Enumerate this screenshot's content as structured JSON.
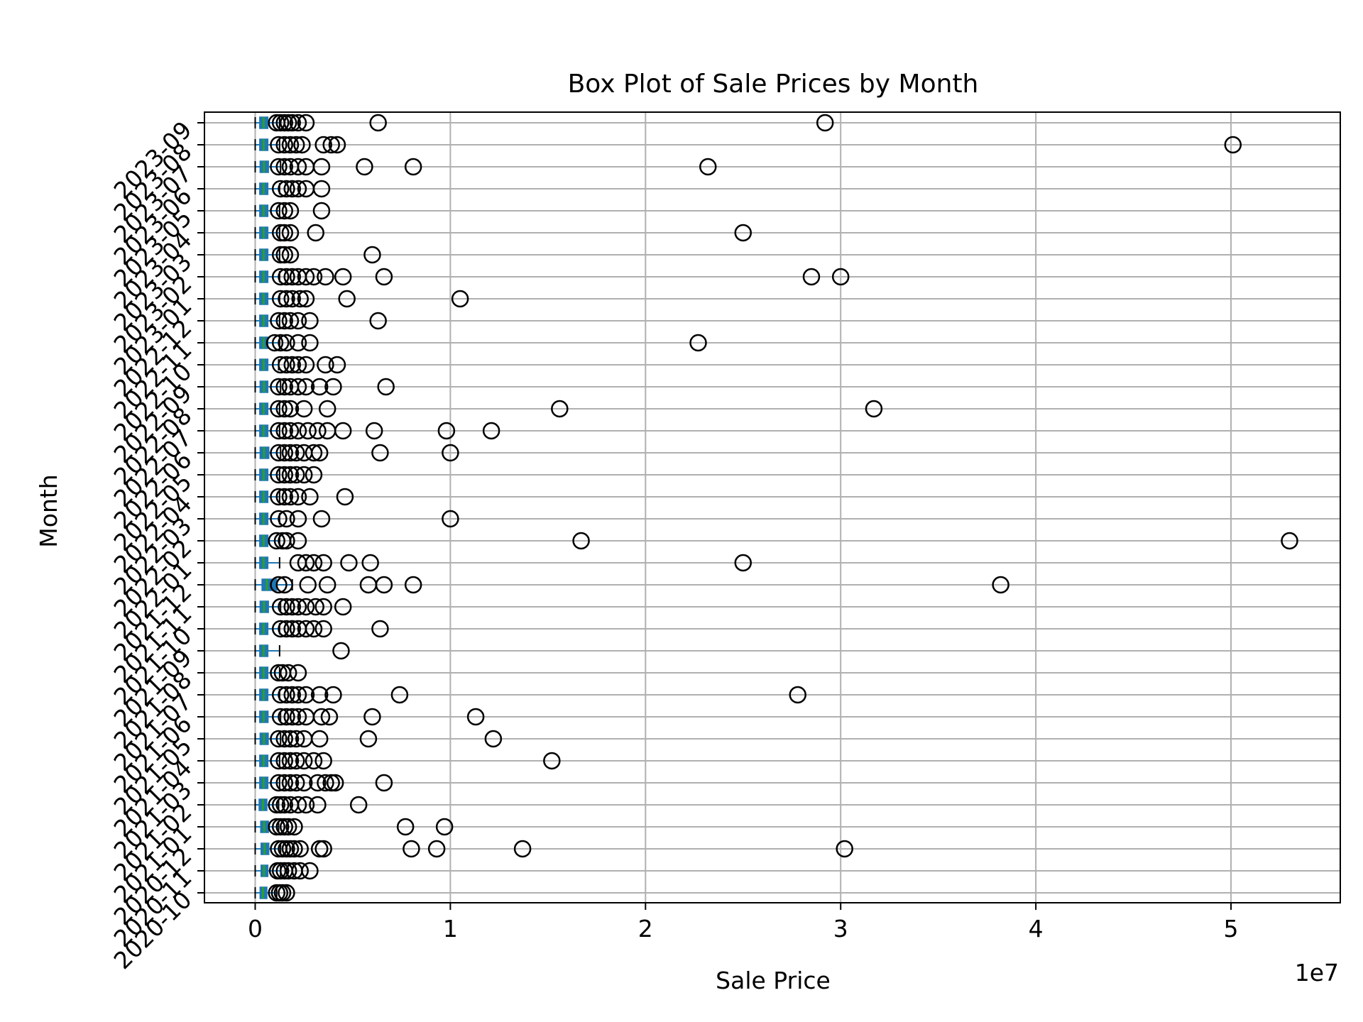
{
  "chart_data": {
    "type": "box",
    "orientation": "horizontal",
    "title": "Box Plot of Sale Prices by Month",
    "xlabel": "Sale Price",
    "ylabel": "Month",
    "offset_label": "1e7",
    "xlim": [
      -2600000,
      55600000
    ],
    "xticks": [
      0,
      10000000,
      20000000,
      30000000,
      40000000,
      50000000
    ],
    "xtick_labels": [
      "0",
      "1",
      "2",
      "3",
      "4",
      "5"
    ],
    "grid": true,
    "colors": {
      "box": "#1f77b4",
      "median": "#2ca02c",
      "flier": "#000000",
      "grid": "#b0b0b0"
    },
    "categories": [
      "2020-10",
      "2020-11",
      "2020-12",
      "2021-01",
      "2021-02",
      "2021-03",
      "2021-04",
      "2021-05",
      "2021-06",
      "2021-07",
      "2021-08",
      "2021-09",
      "2021-10",
      "2021-11",
      "2021-12",
      "2022-01",
      "2022-02",
      "2022-03",
      "2022-04",
      "2022-05",
      "2022-06",
      "2022-07",
      "2022-08",
      "2022-09",
      "2022-10",
      "2022-11",
      "2022-12",
      "2023-01",
      "2023-02",
      "2023-03",
      "2023-04",
      "2023-05",
      "2023-06",
      "2023-07",
      "2023-08",
      "2023-09"
    ],
    "boxes": [
      {
        "whislo": 0,
        "q1": 250000,
        "med": 400000,
        "q3": 600000,
        "whishi": 1100000
      },
      {
        "whislo": 0,
        "q1": 300000,
        "med": 450000,
        "q3": 650000,
        "whishi": 1300000
      },
      {
        "whislo": 0,
        "q1": 300000,
        "med": 480000,
        "q3": 700000,
        "whishi": 1300000
      },
      {
        "whislo": 0,
        "q1": 280000,
        "med": 460000,
        "q3": 680000,
        "whishi": 1200000
      },
      {
        "whislo": 0,
        "q1": 200000,
        "med": 400000,
        "q3": 600000,
        "whishi": 1200000
      },
      {
        "whislo": 0,
        "q1": 230000,
        "med": 430000,
        "q3": 650000,
        "whishi": 1250000
      },
      {
        "whislo": 0,
        "q1": 230000,
        "med": 430000,
        "q3": 650000,
        "whishi": 1250000
      },
      {
        "whislo": 0,
        "q1": 250000,
        "med": 450000,
        "q3": 670000,
        "whishi": 1300000
      },
      {
        "whislo": 0,
        "q1": 230000,
        "med": 430000,
        "q3": 660000,
        "whishi": 1300000
      },
      {
        "whislo": 0,
        "q1": 230000,
        "med": 430000,
        "q3": 650000,
        "whishi": 1250000
      },
      {
        "whislo": 0,
        "q1": 230000,
        "med": 430000,
        "q3": 650000,
        "whishi": 1250000
      },
      {
        "whislo": 0,
        "q1": 230000,
        "med": 430000,
        "q3": 650000,
        "whishi": 1250000
      },
      {
        "whislo": 0,
        "q1": 230000,
        "med": 430000,
        "q3": 650000,
        "whishi": 1250000
      },
      {
        "whislo": 0,
        "q1": 250000,
        "med": 450000,
        "q3": 680000,
        "whishi": 1300000
      },
      {
        "whislo": 0,
        "q1": 350000,
        "med": 600000,
        "q3": 1100000,
        "whishi": 1900000
      },
      {
        "whislo": 0,
        "q1": 230000,
        "med": 430000,
        "q3": 650000,
        "whishi": 1250000
      },
      {
        "whislo": 0,
        "q1": 230000,
        "med": 430000,
        "q3": 650000,
        "whishi": 1250000
      },
      {
        "whislo": 0,
        "q1": 230000,
        "med": 430000,
        "q3": 650000,
        "whishi": 1250000
      },
      {
        "whislo": 0,
        "q1": 230000,
        "med": 430000,
        "q3": 650000,
        "whishi": 1250000
      },
      {
        "whislo": 0,
        "q1": 230000,
        "med": 430000,
        "q3": 650000,
        "whishi": 1250000
      },
      {
        "whislo": 0,
        "q1": 250000,
        "med": 450000,
        "q3": 700000,
        "whishi": 1300000
      },
      {
        "whislo": 0,
        "q1": 230000,
        "med": 430000,
        "q3": 650000,
        "whishi": 1250000
      },
      {
        "whislo": 0,
        "q1": 230000,
        "med": 430000,
        "q3": 650000,
        "whishi": 1250000
      },
      {
        "whislo": 0,
        "q1": 250000,
        "med": 450000,
        "q3": 650000,
        "whishi": 1300000
      },
      {
        "whislo": 0,
        "q1": 230000,
        "med": 430000,
        "q3": 650000,
        "whishi": 1200000
      },
      {
        "whislo": 0,
        "q1": 230000,
        "med": 430000,
        "q3": 650000,
        "whishi": 1250000
      },
      {
        "whislo": 0,
        "q1": 230000,
        "med": 430000,
        "q3": 650000,
        "whishi": 1250000
      },
      {
        "whislo": 0,
        "q1": 230000,
        "med": 430000,
        "q3": 650000,
        "whishi": 1250000
      },
      {
        "whislo": 0,
        "q1": 230000,
        "med": 430000,
        "q3": 650000,
        "whishi": 1250000
      },
      {
        "whislo": 0,
        "q1": 230000,
        "med": 430000,
        "q3": 650000,
        "whishi": 1250000
      },
      {
        "whislo": 0,
        "q1": 230000,
        "med": 430000,
        "q3": 650000,
        "whishi": 1250000
      },
      {
        "whislo": 0,
        "q1": 230000,
        "med": 430000,
        "q3": 650000,
        "whishi": 1250000
      },
      {
        "whislo": 0,
        "q1": 230000,
        "med": 430000,
        "q3": 650000,
        "whishi": 1250000
      },
      {
        "whislo": 0,
        "q1": 250000,
        "med": 450000,
        "q3": 680000,
        "whishi": 1300000
      },
      {
        "whislo": 0,
        "q1": 230000,
        "med": 430000,
        "q3": 650000,
        "whishi": 1250000
      },
      {
        "whislo": 0,
        "q1": 230000,
        "med": 430000,
        "q3": 650000,
        "whishi": 1250000
      }
    ],
    "fliers": [
      [
        1100000,
        1250000,
        1400000,
        1600000
      ],
      [
        1150000,
        1300000,
        1500000,
        1700000,
        2000000,
        2300000,
        2800000
      ],
      [
        1200000,
        1400000,
        1600000,
        1800000,
        2000000,
        2300000,
        3300000,
        3500000,
        8000000,
        9300000,
        13700000,
        30200000
      ],
      [
        1100000,
        1300000,
        1500000,
        1700000,
        2000000,
        7700000,
        9700000
      ],
      [
        1100000,
        1300000,
        1500000,
        1800000,
        2200000,
        2600000,
        3200000,
        5300000
      ],
      [
        1200000,
        1500000,
        1800000,
        2100000,
        2500000,
        3200000,
        3600000,
        3900000,
        4100000,
        6600000
      ],
      [
        1200000,
        1500000,
        1800000,
        2100000,
        2500000,
        3000000,
        3500000,
        15200000
      ],
      [
        1200000,
        1500000,
        1800000,
        2100000,
        2500000,
        3300000,
        5800000,
        12200000
      ],
      [
        1300000,
        1600000,
        1900000,
        2200000,
        2600000,
        3400000,
        3800000,
        6000000,
        11300000
      ],
      [
        1300000,
        1600000,
        1900000,
        2200000,
        2600000,
        3300000,
        4000000,
        7400000,
        27800000
      ],
      [
        1200000,
        1400000,
        1700000,
        2200000
      ],
      [
        4400000
      ],
      [
        1300000,
        1600000,
        1900000,
        2200000,
        2600000,
        3000000,
        3500000,
        6400000
      ],
      [
        1300000,
        1600000,
        1900000,
        2200000,
        2600000,
        3100000,
        3500000,
        4500000
      ],
      [
        1200000,
        1500000,
        2700000,
        3700000,
        5800000,
        6600000,
        8100000,
        38200000
      ],
      [
        2200000,
        2600000,
        3000000,
        3500000,
        4800000,
        5900000,
        25000000
      ],
      [
        1100000,
        1400000,
        1600000,
        2200000,
        16700000,
        53000000
      ],
      [
        1200000,
        1600000,
        2200000,
        3400000,
        10000000
      ],
      [
        1200000,
        1500000,
        1800000,
        2200000,
        2800000,
        4600000
      ],
      [
        1200000,
        1500000,
        1800000,
        2100000,
        2500000,
        3000000
      ],
      [
        1200000,
        1500000,
        1800000,
        2100000,
        2500000,
        3000000,
        3300000,
        6400000,
        10000000
      ],
      [
        1200000,
        1500000,
        1800000,
        2200000,
        2700000,
        3200000,
        3700000,
        4500000,
        6100000,
        9800000,
        12100000
      ],
      [
        1200000,
        1500000,
        1800000,
        2500000,
        3700000,
        15600000,
        31700000
      ],
      [
        1200000,
        1500000,
        1800000,
        2200000,
        2600000,
        3300000,
        4000000,
        6700000
      ],
      [
        1300000,
        1600000,
        1900000,
        2200000,
        2600000,
        3600000,
        4200000
      ],
      [
        1000000,
        1300000,
        1600000,
        2200000,
        2800000,
        22700000
      ],
      [
        1200000,
        1500000,
        1800000,
        2200000,
        2800000,
        6300000
      ],
      [
        1300000,
        1600000,
        1900000,
        2300000,
        2600000,
        4700000,
        10500000
      ],
      [
        1300000,
        1600000,
        1900000,
        2200000,
        2600000,
        3000000,
        3600000,
        4500000,
        6600000,
        28500000,
        30000000
      ],
      [
        1300000,
        1500000,
        1800000,
        6000000
      ],
      [
        1300000,
        1500000,
        1800000,
        3100000,
        25000000
      ],
      [
        1200000,
        1500000,
        1800000,
        3400000
      ],
      [
        1300000,
        1600000,
        1900000,
        2200000,
        2600000,
        3400000
      ],
      [
        1200000,
        1500000,
        1800000,
        2200000,
        2600000,
        3400000,
        5600000,
        8100000,
        23200000
      ],
      [
        1200000,
        1500000,
        1800000,
        2100000,
        2400000,
        3500000,
        3900000,
        4200000,
        50100000
      ],
      [
        1100000,
        1300000,
        1500000,
        1700000,
        1900000,
        2200000,
        2600000,
        6300000,
        29200000
      ]
    ]
  }
}
